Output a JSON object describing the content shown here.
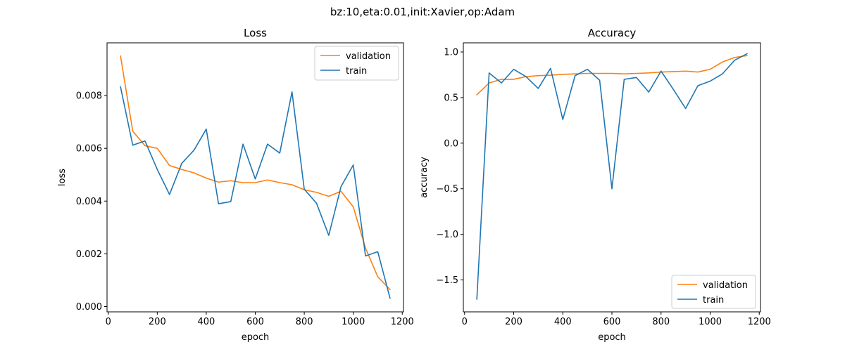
{
  "suptitle": "bz:10,eta:0.01,init:Xavier,op:Adam",
  "colors": {
    "validation": "#ff7f0e",
    "train": "#1f77b4",
    "axis": "#000000",
    "legend_border": "#cccccc"
  },
  "chart_data": [
    {
      "type": "line",
      "title": "Loss",
      "xlabel": "epoch",
      "ylabel": "loss",
      "xlim": [
        -5,
        1205
      ],
      "ylim": [
        -0.0002,
        0.01
      ],
      "xticks": [
        0,
        200,
        400,
        600,
        800,
        1000,
        1200
      ],
      "xtick_labels": [
        "0",
        "200",
        "400",
        "600",
        "800",
        "1000",
        "1200"
      ],
      "yticks": [
        0,
        0.002,
        0.004,
        0.006,
        0.008
      ],
      "ytick_labels": [
        "0.000",
        "0.002",
        "0.004",
        "0.006",
        "0.008"
      ],
      "grid": false,
      "legend": "upper right",
      "x": [
        50,
        100,
        150,
        200,
        250,
        300,
        350,
        400,
        450,
        500,
        550,
        600,
        650,
        700,
        750,
        800,
        850,
        900,
        950,
        1000,
        1050,
        1100,
        1150
      ],
      "series": [
        {
          "name": "validation",
          "values": [
            0.0095,
            0.00665,
            0.0061,
            0.006,
            0.00535,
            0.0052,
            0.00507,
            0.00487,
            0.00472,
            0.00477,
            0.0047,
            0.0047,
            0.0048,
            0.0047,
            0.00462,
            0.00443,
            0.00433,
            0.00418,
            0.00437,
            0.00378,
            0.00222,
            0.00113,
            0.00065
          ]
        },
        {
          "name": "train",
          "values": [
            0.00833,
            0.00612,
            0.00628,
            0.0052,
            0.00425,
            0.00543,
            0.00593,
            0.00673,
            0.0039,
            0.00398,
            0.00616,
            0.00484,
            0.00616,
            0.00582,
            0.00814,
            0.00445,
            0.00392,
            0.0027,
            0.00455,
            0.00537,
            0.00192,
            0.00208,
            0.00032
          ]
        }
      ]
    },
    {
      "type": "line",
      "title": "Accuracy",
      "xlabel": "epoch",
      "ylabel": "accuracy",
      "xlim": [
        -5,
        1205
      ],
      "ylim": [
        -1.85,
        1.1
      ],
      "xticks": [
        0,
        200,
        400,
        600,
        800,
        1000,
        1200
      ],
      "xtick_labels": [
        "0",
        "200",
        "400",
        "600",
        "800",
        "1000",
        "1200"
      ],
      "yticks": [
        -1.5,
        -1.0,
        -0.5,
        0.0,
        0.5,
        1.0
      ],
      "ytick_labels": [
        "−1.5",
        "−1.0",
        "−0.5",
        "0.0",
        "0.5",
        "1.0"
      ],
      "grid": false,
      "legend": "lower right",
      "x": [
        50,
        100,
        150,
        200,
        250,
        300,
        350,
        400,
        450,
        500,
        550,
        600,
        650,
        700,
        750,
        800,
        850,
        900,
        950,
        1000,
        1050,
        1100,
        1150
      ],
      "series": [
        {
          "name": "validation",
          "values": [
            0.53,
            0.66,
            0.7,
            0.7,
            0.73,
            0.74,
            0.745,
            0.755,
            0.76,
            0.765,
            0.765,
            0.765,
            0.76,
            0.765,
            0.77,
            0.78,
            0.785,
            0.79,
            0.78,
            0.81,
            0.89,
            0.94,
            0.96
          ]
        },
        {
          "name": "train",
          "values": [
            -1.71,
            0.77,
            0.66,
            0.81,
            0.73,
            0.6,
            0.82,
            0.26,
            0.74,
            0.81,
            0.69,
            -0.5,
            0.7,
            0.72,
            0.56,
            0.79,
            0.59,
            0.38,
            0.63,
            0.68,
            0.76,
            0.91,
            0.98
          ]
        }
      ]
    }
  ]
}
